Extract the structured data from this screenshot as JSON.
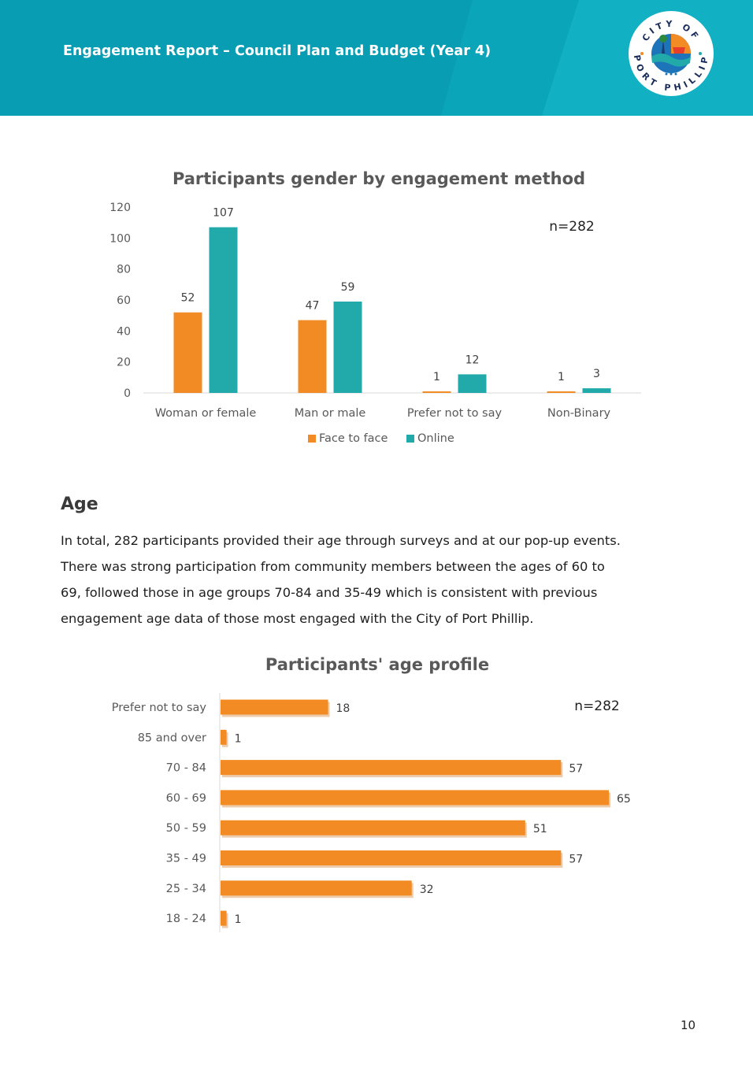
{
  "header": {
    "title": "Engagement Report – Council Plan and Budget (Year 4)",
    "logo_text_top": "CITY OF",
    "logo_text_bottom": "PORT PHILLIP",
    "colors": {
      "teal": "#0aa5b8",
      "teal_dark": "#089db2",
      "teal_light": "#12b0c3"
    }
  },
  "colors": {
    "face_to_face": "#f28b23",
    "online": "#21aaa9",
    "age_bar": "#f28b23"
  },
  "chart_data": [
    {
      "type": "bar",
      "title": "Participants gender by engagement method",
      "annotation": "n=282",
      "categories": [
        "Woman or female",
        "Man or male",
        "Prefer not to say",
        "Non-Binary"
      ],
      "series": [
        {
          "name": "Face to face",
          "values": [
            52,
            47,
            1,
            1
          ]
        },
        {
          "name": "Online",
          "values": [
            107,
            59,
            12,
            3
          ]
        }
      ],
      "yticks": [
        "0",
        "20",
        "40",
        "60",
        "80",
        "100",
        "120"
      ],
      "ylim": [
        0,
        120
      ],
      "legend": "bottom",
      "grid": false
    },
    {
      "type": "bar",
      "orientation": "horizontal",
      "title": "Participants' age profile",
      "annotation": "n=282",
      "categories": [
        "Prefer not to say",
        "85 and over",
        "70 - 84",
        "60 - 69",
        "50 - 59",
        "35 - 49",
        "25 - 34",
        "18 - 24"
      ],
      "values": [
        18,
        1,
        57,
        65,
        51,
        57,
        32,
        1
      ],
      "xlim": [
        0,
        65
      ],
      "grid": false
    }
  ],
  "age_section": {
    "heading": "Age",
    "lines": [
      "In total, 282 participants provided their age through surveys and at our pop-up events.",
      "There was strong participation from community members between the ages of 60 to",
      "69, followed those in age groups 70-84 and 35-49 which is consistent with previous",
      "engagement age data of those most engaged with the City of Port Phillip."
    ]
  },
  "page_number": "10"
}
